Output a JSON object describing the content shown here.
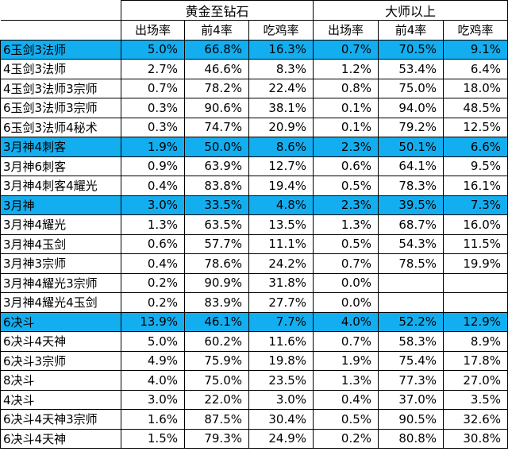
{
  "header": {
    "empty": "",
    "group1": "黄金至钻石",
    "group2": "大师以上",
    "sub": [
      "出场率",
      "前4率",
      "吃鸡率",
      "出场率",
      "前4率",
      "吃鸡率"
    ]
  },
  "rows": [
    {
      "name": "6玉剑3法师",
      "v": [
        "5.0%",
        "66.8%",
        "16.3%",
        "0.7%",
        "70.5%",
        "9.1%"
      ],
      "hl": true
    },
    {
      "name": "4玉剑3法师",
      "v": [
        "2.7%",
        "46.6%",
        "8.3%",
        "1.2%",
        "53.4%",
        "6.4%"
      ],
      "hl": false
    },
    {
      "name": "4玉剑3法师3宗师",
      "v": [
        "0.7%",
        "78.2%",
        "22.4%",
        "0.8%",
        "75.0%",
        "18.0%"
      ],
      "hl": false
    },
    {
      "name": "6玉剑3法师3宗师",
      "v": [
        "0.3%",
        "90.6%",
        "38.1%",
        "0.1%",
        "94.0%",
        "48.5%"
      ],
      "hl": false
    },
    {
      "name": "6玉剑3法师4秘术",
      "v": [
        "0.3%",
        "74.7%",
        "20.9%",
        "0.1%",
        "79.2%",
        "12.5%"
      ],
      "hl": false
    },
    {
      "name": "3月神4刺客",
      "v": [
        "1.9%",
        "50.0%",
        "8.6%",
        "2.3%",
        "50.1%",
        "6.6%"
      ],
      "hl": true
    },
    {
      "name": "3月神6刺客",
      "v": [
        "0.9%",
        "63.9%",
        "12.7%",
        "0.6%",
        "64.1%",
        "9.5%"
      ],
      "hl": false
    },
    {
      "name": "3月神4刺客4耀光",
      "v": [
        "0.4%",
        "83.8%",
        "19.4%",
        "0.5%",
        "78.3%",
        "16.1%"
      ],
      "hl": false
    },
    {
      "name": "3月神",
      "v": [
        "3.0%",
        "33.5%",
        "4.8%",
        "2.3%",
        "39.5%",
        "7.3%"
      ],
      "hl": true
    },
    {
      "name": "3月神4耀光",
      "v": [
        "1.3%",
        "63.5%",
        "13.5%",
        "1.3%",
        "68.7%",
        "16.0%"
      ],
      "hl": false
    },
    {
      "name": "3月神4玉剑",
      "v": [
        "0.6%",
        "57.7%",
        "11.1%",
        "0.5%",
        "54.3%",
        "11.5%"
      ],
      "hl": false
    },
    {
      "name": "3月神3宗师",
      "v": [
        "0.4%",
        "78.6%",
        "24.2%",
        "0.7%",
        "78.5%",
        "19.9%"
      ],
      "hl": false
    },
    {
      "name": "3月神4耀光3宗师",
      "v": [
        "0.2%",
        "90.9%",
        "31.8%",
        "0.0%",
        "",
        ""
      ],
      "hl": false
    },
    {
      "name": "3月神4耀光4玉剑",
      "v": [
        "0.2%",
        "83.9%",
        "27.7%",
        "0.0%",
        "",
        ""
      ],
      "hl": false
    },
    {
      "name": "6决斗",
      "v": [
        "13.9%",
        "46.1%",
        "7.7%",
        "4.0%",
        "52.2%",
        "12.9%"
      ],
      "hl": true
    },
    {
      "name": "6决斗4天神",
      "v": [
        "5.0%",
        "60.2%",
        "11.6%",
        "0.7%",
        "58.3%",
        "8.9%"
      ],
      "hl": false
    },
    {
      "name": "6决斗3宗师",
      "v": [
        "4.9%",
        "75.9%",
        "19.8%",
        "1.9%",
        "75.4%",
        "17.8%"
      ],
      "hl": false
    },
    {
      "name": "8决斗",
      "v": [
        "4.0%",
        "75.0%",
        "23.5%",
        "1.3%",
        "77.3%",
        "27.0%"
      ],
      "hl": false
    },
    {
      "name": "4决斗",
      "v": [
        "3.0%",
        "22.0%",
        "3.0%",
        "0.4%",
        "37.0%",
        "3.5%"
      ],
      "hl": false
    },
    {
      "name": "6决斗4天神3宗师",
      "v": [
        "1.6%",
        "87.5%",
        "30.4%",
        "0.5%",
        "90.5%",
        "32.6%"
      ],
      "hl": false
    },
    {
      "name": "6决斗4天神",
      "v": [
        "1.5%",
        "79.3%",
        "24.9%",
        "0.2%",
        "80.8%",
        "30.8%"
      ],
      "hl": false
    }
  ],
  "colors": {
    "highlight": "#13aef0",
    "border": "#000000"
  }
}
